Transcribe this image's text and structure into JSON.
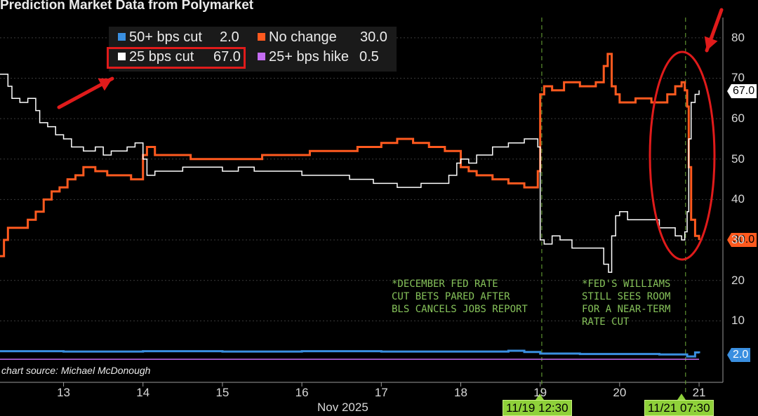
{
  "title": "Prediction Market Data from Polymarket",
  "source": "chart source: Michael McDonough",
  "legend": [
    {
      "label": "50+ bps cut",
      "value": "2.0",
      "color": "#3a8fe0"
    },
    {
      "label": "No change",
      "value": "30.0",
      "color": "#ff5a1f"
    },
    {
      "label": "25 bps cut",
      "value": "67.0",
      "color": "#ffffff"
    },
    {
      "label": "25+ bps hike",
      "value": "0.5",
      "color": "#c46cf2"
    }
  ],
  "annotations": [
    "*DECEMBER FED RATE\nCUT BETS PARED AFTER\nBLS CANCELS JOBS REPORT",
    "*FED'S WILLIAMS\nSTILL SEES ROOM\nFOR A NEAR-TERM\nRATE CUT"
  ],
  "event_markers": [
    "11/19 12:30",
    "11/21 07:30"
  ],
  "last_value_tags": [
    "67.0",
    "30.0",
    "2.0"
  ],
  "chart_data": {
    "type": "line",
    "title": "Prediction Market Data from Polymarket",
    "xlabel": "Nov 2025",
    "ylabel": "",
    "ylim": [
      0,
      85
    ],
    "y_ticks": [
      10,
      20,
      30,
      40,
      50,
      60,
      70,
      80
    ],
    "xlim": [
      12.2,
      21.3
    ],
    "x_ticks": [
      13,
      14,
      15,
      16,
      17,
      18,
      19,
      20,
      21
    ],
    "x_tick_labels": [
      "13",
      "14",
      "15",
      "16",
      "17",
      "18",
      "19",
      "20",
      "21"
    ],
    "grid": true,
    "legend_position": "top-left",
    "series": [
      {
        "name": "25 bps cut",
        "color": "#ffffff",
        "points": [
          [
            12.2,
            71
          ],
          [
            12.3,
            68
          ],
          [
            12.35,
            65
          ],
          [
            12.45,
            64
          ],
          [
            12.55,
            65
          ],
          [
            12.65,
            62
          ],
          [
            12.7,
            59
          ],
          [
            12.8,
            58
          ],
          [
            12.9,
            56
          ],
          [
            13.0,
            55
          ],
          [
            13.1,
            53
          ],
          [
            13.25,
            52
          ],
          [
            13.4,
            53
          ],
          [
            13.5,
            51
          ],
          [
            13.6,
            52
          ],
          [
            13.7,
            52
          ],
          [
            13.8,
            53
          ],
          [
            13.9,
            54
          ],
          [
            13.95,
            54
          ],
          [
            14.0,
            50
          ],
          [
            14.05,
            46
          ],
          [
            14.15,
            47
          ],
          [
            14.3,
            47
          ],
          [
            14.5,
            48
          ],
          [
            14.7,
            48
          ],
          [
            15.0,
            47
          ],
          [
            15.2,
            48
          ],
          [
            15.4,
            47
          ],
          [
            15.6,
            47
          ],
          [
            15.8,
            47
          ],
          [
            16.0,
            46
          ],
          [
            16.3,
            46
          ],
          [
            16.6,
            45
          ],
          [
            16.9,
            44
          ],
          [
            17.2,
            43
          ],
          [
            17.5,
            44
          ],
          [
            17.75,
            44
          ],
          [
            17.85,
            46
          ],
          [
            17.95,
            49
          ],
          [
            18.0,
            50
          ],
          [
            18.1,
            49
          ],
          [
            18.2,
            51
          ],
          [
            18.4,
            53
          ],
          [
            18.6,
            54
          ],
          [
            18.8,
            55
          ],
          [
            18.93,
            55
          ],
          [
            18.97,
            53
          ],
          [
            19.0,
            30
          ],
          [
            19.05,
            29
          ],
          [
            19.15,
            31
          ],
          [
            19.25,
            30
          ],
          [
            19.4,
            28
          ],
          [
            19.55,
            28
          ],
          [
            19.7,
            28
          ],
          [
            19.8,
            24
          ],
          [
            19.86,
            22
          ],
          [
            19.9,
            31
          ],
          [
            19.95,
            36
          ],
          [
            20.0,
            37
          ],
          [
            20.1,
            35
          ],
          [
            20.3,
            35
          ],
          [
            20.5,
            33
          ],
          [
            20.6,
            33
          ],
          [
            20.7,
            31
          ],
          [
            20.78,
            30
          ],
          [
            20.82,
            32
          ],
          [
            20.85,
            37
          ],
          [
            20.87,
            55
          ],
          [
            20.9,
            64
          ],
          [
            20.95,
            66
          ],
          [
            21.0,
            67
          ]
        ]
      },
      {
        "name": "No change",
        "color": "#ff5a1f",
        "points": [
          [
            12.2,
            26
          ],
          [
            12.25,
            30
          ],
          [
            12.3,
            33
          ],
          [
            12.45,
            33
          ],
          [
            12.55,
            35
          ],
          [
            12.65,
            37
          ],
          [
            12.75,
            40
          ],
          [
            12.85,
            42
          ],
          [
            12.95,
            43
          ],
          [
            13.05,
            45
          ],
          [
            13.15,
            46
          ],
          [
            13.25,
            48
          ],
          [
            13.4,
            47
          ],
          [
            13.55,
            46
          ],
          [
            13.7,
            46
          ],
          [
            13.85,
            45
          ],
          [
            13.97,
            45
          ],
          [
            14.0,
            51
          ],
          [
            14.05,
            53
          ],
          [
            14.15,
            51
          ],
          [
            14.3,
            51
          ],
          [
            14.6,
            50
          ],
          [
            14.9,
            50
          ],
          [
            15.2,
            50
          ],
          [
            15.5,
            51
          ],
          [
            15.8,
            51
          ],
          [
            16.1,
            52
          ],
          [
            16.4,
            52
          ],
          [
            16.7,
            53
          ],
          [
            17.0,
            54
          ],
          [
            17.2,
            55
          ],
          [
            17.4,
            54
          ],
          [
            17.6,
            53
          ],
          [
            17.8,
            52
          ],
          [
            17.95,
            52
          ],
          [
            18.0,
            48
          ],
          [
            18.1,
            47
          ],
          [
            18.2,
            46
          ],
          [
            18.4,
            45
          ],
          [
            18.6,
            44
          ],
          [
            18.8,
            43
          ],
          [
            18.93,
            43
          ],
          [
            18.97,
            47
          ],
          [
            19.0,
            66
          ],
          [
            19.05,
            68
          ],
          [
            19.15,
            67
          ],
          [
            19.3,
            69
          ],
          [
            19.5,
            68
          ],
          [
            19.7,
            69
          ],
          [
            19.8,
            73
          ],
          [
            19.85,
            76
          ],
          [
            19.9,
            68
          ],
          [
            19.95,
            66
          ],
          [
            20.0,
            64
          ],
          [
            20.2,
            65
          ],
          [
            20.4,
            64
          ],
          [
            20.6,
            66
          ],
          [
            20.7,
            68
          ],
          [
            20.78,
            69
          ],
          [
            20.82,
            67
          ],
          [
            20.85,
            63
          ],
          [
            20.87,
            48
          ],
          [
            20.9,
            35
          ],
          [
            20.95,
            31
          ],
          [
            21.0,
            30
          ]
        ]
      },
      {
        "name": "50+ bps cut",
        "color": "#3a8fe0",
        "points": [
          [
            12.2,
            2.5
          ],
          [
            13.0,
            2.4
          ],
          [
            14.0,
            2.5
          ],
          [
            15.0,
            2.4
          ],
          [
            16.0,
            2.5
          ],
          [
            17.0,
            2.4
          ],
          [
            18.0,
            2.4
          ],
          [
            18.6,
            2.6
          ],
          [
            18.8,
            2.3
          ],
          [
            19.0,
            1.9
          ],
          [
            19.5,
            1.8
          ],
          [
            20.0,
            1.8
          ],
          [
            20.5,
            1.7
          ],
          [
            20.85,
            1.2
          ],
          [
            20.95,
            2.2
          ],
          [
            21.0,
            2.0
          ]
        ]
      },
      {
        "name": "25+ bps hike",
        "color": "#c46cf2",
        "points": [
          [
            12.2,
            0.5
          ],
          [
            21.0,
            0.5
          ]
        ]
      }
    ]
  }
}
